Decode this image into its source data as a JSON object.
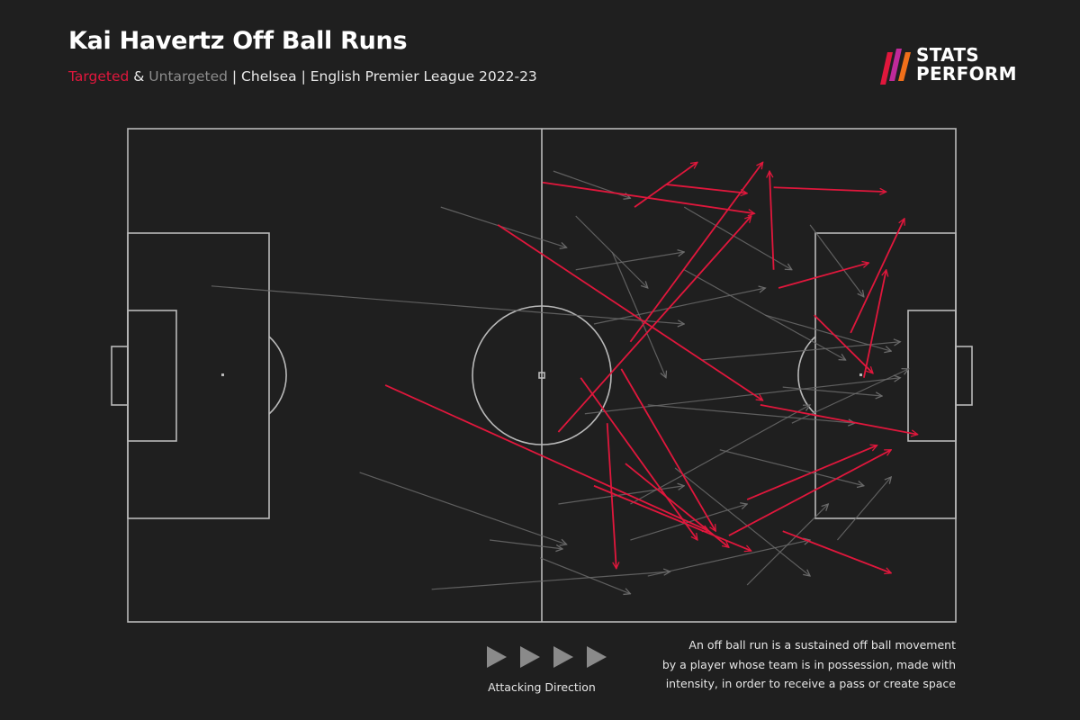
{
  "chart_data": {
    "type": "arrows",
    "title": "Kai Havertz Off Ball Runs",
    "subtitle_joiner": "&",
    "subtitle": "| Chelsea | English Premier League 2022-23",
    "logo": [
      "STATS",
      "PERFORM"
    ],
    "xlim": [
      0,
      100
    ],
    "ylim": [
      0,
      100
    ],
    "series": [
      {
        "name": "Targeted",
        "color": "#e0173c",
        "x0": [
          50.1,
          52.0,
          44.7,
          31.1,
          54.7,
          57.9,
          56.3,
          61.2,
          78.0,
          60.7,
          78.6,
          87.3,
          74.8,
          72.6,
          76.4,
          79.1,
          60.1,
          78.0,
          88.9,
          82.9,
          65.0,
          59.6
        ],
        "y0": [
          10.9,
          61.5,
          19.5,
          52.0,
          50.5,
          59.7,
          72.4,
          15.9,
          11.9,
          43.2,
          32.3,
          41.4,
          75.2,
          82.5,
          56.0,
          81.6,
          67.9,
          28.6,
          50.5,
          37.8,
          11.3,
          48.7
        ],
        "x1": [
          75.7,
          75.3,
          76.7,
          70.2,
          68.8,
          59.0,
          75.3,
          68.8,
          91.6,
          76.7,
          89.5,
          93.8,
          90.5,
          92.2,
          95.4,
          92.2,
          72.6,
          77.5,
          91.6,
          90.0,
          74.8,
          71.0
        ],
        "y1": [
          17.2,
          17.7,
          55.1,
          81.6,
          83.4,
          89.2,
          85.6,
          6.8,
          12.8,
          6.8,
          27.2,
          18.2,
          64.2,
          65.1,
          62.0,
          90.1,
          84.9,
          8.6,
          28.6,
          49.6,
          13.1,
          81.6
        ]
      },
      {
        "name": "Untargeted",
        "color": "#6b6b6b",
        "x0": [
          37.8,
          10.1,
          28.0,
          36.7,
          43.7,
          51.4,
          54.1,
          55.2,
          60.7,
          62.8,
          67.2,
          69.3,
          71.5,
          74.8,
          54.1,
          82.4,
          62.8,
          56.3,
          60.7,
          52.0,
          66.1,
          80.2,
          58.5,
          77.0,
          67.2,
          49.8,
          85.7,
          79.1
        ],
        "y0": [
          15.9,
          31.9,
          69.7,
          93.4,
          83.4,
          8.6,
          28.6,
          57.8,
          76.1,
          90.7,
          28.6,
          46.9,
          65.1,
          92.5,
          17.7,
          19.5,
          56.0,
          39.6,
          83.4,
          76.1,
          68.8,
          59.7,
          25.0,
          37.8,
          15.9,
          87.0,
          83.4,
          52.4
        ],
        "x1": [
          53.0,
          67.2,
          53.0,
          65.5,
          52.5,
          60.7,
          67.2,
          93.3,
          82.4,
          82.4,
          86.7,
          93.3,
          88.9,
          84.6,
          62.8,
          88.9,
          87.8,
          77.0,
          74.8,
          67.2,
          82.4,
          94.3,
          65.0,
          92.2,
          80.2,
          60.7,
          92.2,
          91.1
        ],
        "y1": [
          24.1,
          39.6,
          84.3,
          89.8,
          85.2,
          14.1,
          25.0,
          50.5,
          56.0,
          83.4,
          46.9,
          43.2,
          72.4,
          76.1,
          32.3,
          34.1,
          59.7,
          32.3,
          76.1,
          72.4,
          90.7,
          48.7,
          50.5,
          45.1,
          28.6,
          94.3,
          70.6,
          54.2
        ]
      }
    ],
    "direction_label": "Attacking Direction",
    "note": [
      "An off ball run is a sustained off ball movement",
      "by a player whose team is in possession, made with",
      "intensity, in order to receive a pass or create space"
    ]
  }
}
